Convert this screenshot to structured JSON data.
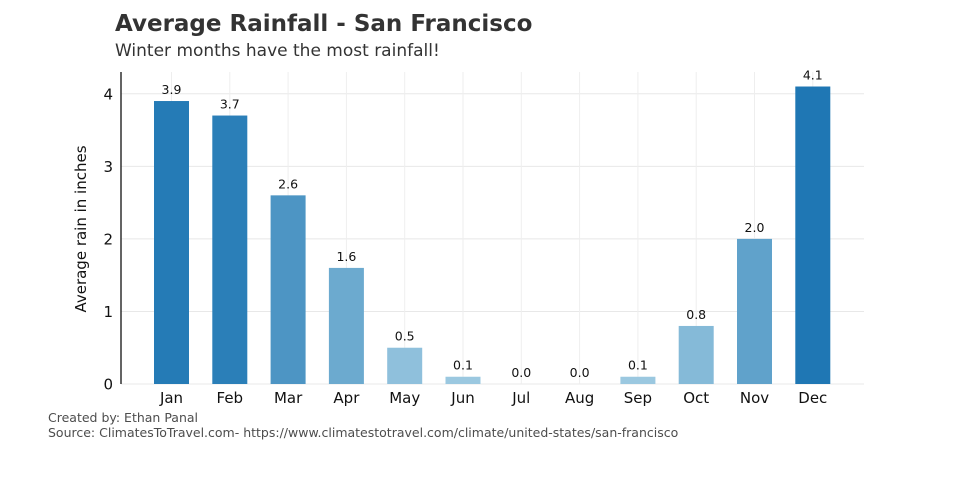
{
  "header": {
    "title": "Average Rainfall - San Francisco",
    "subtitle": "Winter months have the most rainfall!"
  },
  "footer": {
    "credit": "Created by: Ethan Panal",
    "source": "Source: ClimatesToTravel.com- https://www.climatestotravel.com/climate/united-states/san-francisco"
  },
  "chart_data": {
    "type": "bar",
    "title": "Average Rainfall - San Francisco",
    "subtitle": "Winter months have the most rainfall!",
    "xlabel": "",
    "ylabel": "Average rain in inches",
    "categories": [
      "Jan",
      "Feb",
      "Mar",
      "Apr",
      "May",
      "Jun",
      "Jul",
      "Aug",
      "Sep",
      "Oct",
      "Nov",
      "Dec"
    ],
    "values": [
      3.9,
      3.7,
      2.6,
      1.6,
      0.5,
      0.1,
      0.0,
      0.0,
      0.1,
      0.8,
      2.0,
      4.1
    ],
    "value_labels": [
      "3.9",
      "3.7",
      "2.6",
      "1.6",
      "0.5",
      "0.1",
      "0.0",
      "0.0",
      "0.1",
      "0.8",
      "2.0",
      "4.1"
    ],
    "ylim": [
      0,
      4.3
    ],
    "yticks": [
      0,
      1,
      2,
      3,
      4
    ],
    "grid": true,
    "colormap": "Blues (darker for higher rainfall)",
    "color_low": "#9ecae1",
    "color_high": "#1f77b4"
  }
}
